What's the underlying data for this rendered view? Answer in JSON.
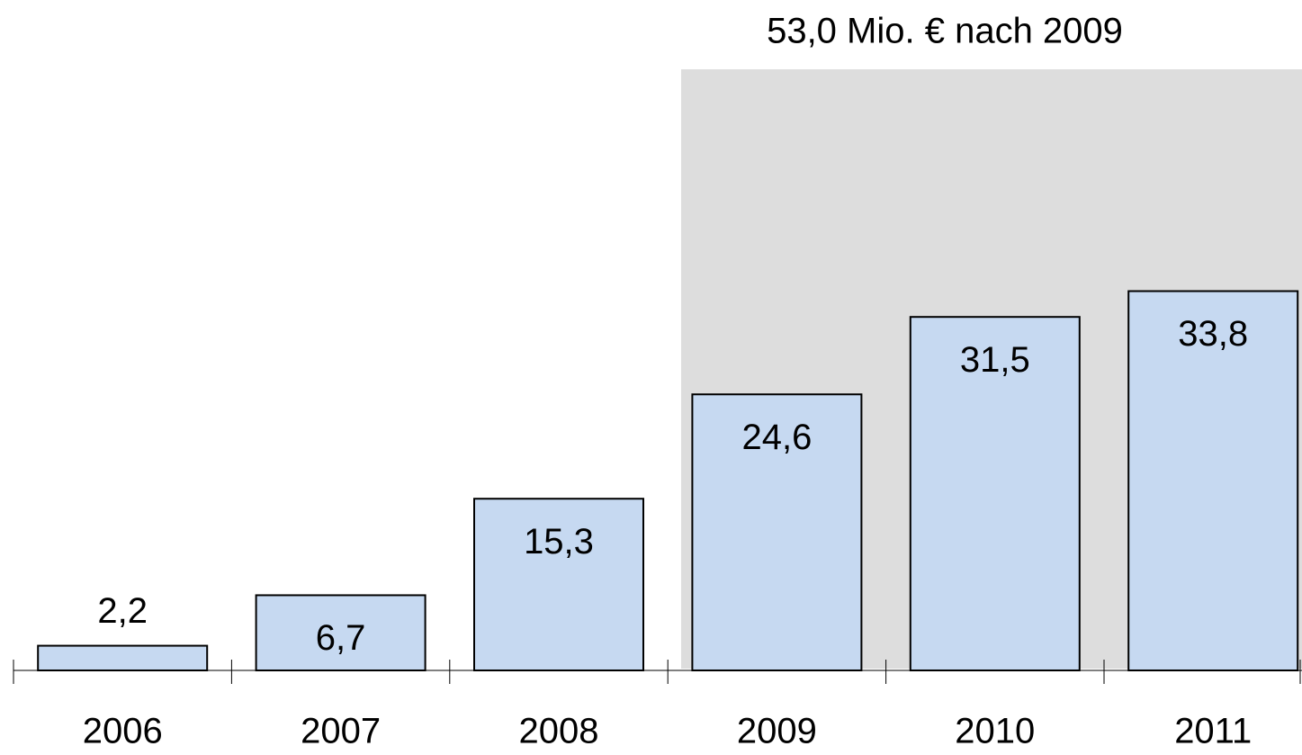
{
  "chart_data": {
    "type": "bar",
    "annotation": "53,0 Mio. € nach 2009",
    "categories": [
      "2006",
      "2007",
      "2008",
      "2009",
      "2010",
      "2011"
    ],
    "values": [
      2.2,
      6.7,
      15.3,
      24.6,
      31.5,
      33.8
    ],
    "value_labels": [
      "2,2",
      "6,7",
      "15,3",
      "24,6",
      "31,5",
      "33,8"
    ],
    "color": "#c6d9f1"
  }
}
